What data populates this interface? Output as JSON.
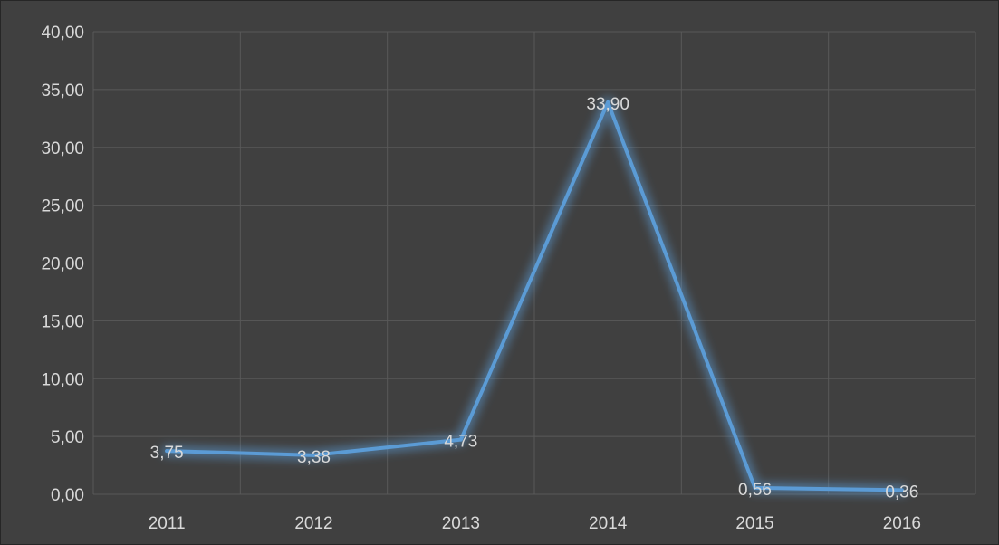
{
  "chart_data": {
    "type": "line",
    "categories": [
      "2011",
      "2012",
      "2013",
      "2014",
      "2015",
      "2016"
    ],
    "series": [
      {
        "values": [
          3.75,
          3.38,
          4.73,
          33.9,
          0.56,
          0.36
        ],
        "labels": [
          "3,75",
          "3,38",
          "4,73",
          "33,90",
          "0,56",
          "0,36"
        ]
      }
    ],
    "y_ticks": [
      "0,00",
      "5,00",
      "10,00",
      "15,00",
      "20,00",
      "25,00",
      "30,00",
      "35,00",
      "40,00"
    ],
    "ylim": [
      0,
      40
    ],
    "y_step": 5,
    "grid": true,
    "legend": "none",
    "colors": {
      "background": "#404040",
      "line": "#5b9bd5",
      "glow": "#5b9bd5",
      "gridline": "#595959",
      "text": "#d9d9d9"
    }
  }
}
